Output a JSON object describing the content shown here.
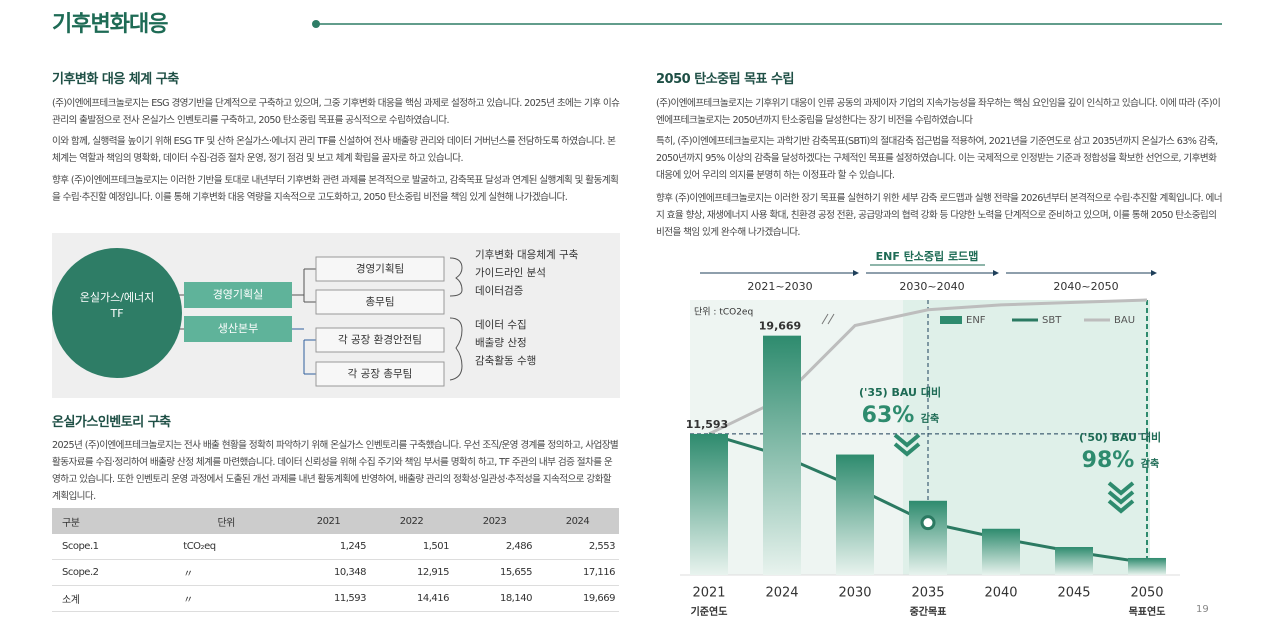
{
  "header": {
    "title": "기후변화대응"
  },
  "sections": [
    {
      "title": "기후변화 대응 체계 구축",
      "paragraphs": [
        "(주)이엔에프테크놀로지는 ESG 경영기반을 단계적으로 구축하고 있으며, 그중 기후변화 대응을 핵심 과제로 설정하고 있습니다. 2025년 초에는 기후 이슈 관리의 출발점으로 전사 온실가스 인벤토리를 구축하고, 2050 탄소중립 목표를 공식적으로 수립하였습니다.",
        "이와 함께, 실행력을 높이기 위해 ESG TF 및 산하 온실가스·에너지 관리 TF를 신설하여 전사 배출량 관리와 데이터 거버넌스를 전담하도록 하였습니다. 본 체계는 역할과 책임의 명확화, 데이터 수집·검증 절차 운영, 정기 점검 및 보고 체계 확립을 골자로 하고 있습니다.",
        "향후 (주)이엔에프테크놀로지는 이러한 기반을 토대로 내년부터 기후변화 관련 과제를 본격적으로 발굴하고, 감축목표 달성과 연계된 실행계획 및 활동계획을 수립·추진할 예정입니다. 이를 통해 기후변화 대응 역량을 지속적으로 고도화하고, 2050 탄소중립 비전을 책임 있게 실현해 나가겠습니다."
      ]
    },
    {
      "title": "온실가스인벤토리 구축",
      "paragraphs": [
        "2025년 (주)이엔에프테크놀로지는 전사 배출 현황을 정확히 파악하기 위해 온실가스 인벤토리를 구축했습니다. 우선 조직/운영 경계를 정의하고, 사업장별 활동자료를 수집·정리하여 배출량 산정 체계를 마련했습니다. 데이터 신뢰성을 위해 수집 주기와 책임 부서를 명확히 하고, TF 주관의 내부 검증 절차를 운영하고 있습니다. 또한 인벤토리 운영 과정에서 도출된 개선 과제를 내년 활동계획에 반영하여, 배출량 관리의 정확성·일관성·추적성을 지속적으로 강화할 계획입니다."
      ]
    },
    {
      "title": "2050 탄소중립 목표 수립",
      "paragraphs": [
        "(주)이엔에프테크놀로지는 기후위기 대응이 인류 공동의 과제이자 기업의 지속가능성을 좌우하는 핵심 요인임을 깊이 인식하고 있습니다. 이에 따라 (주)이엔에프테크놀로지는 2050년까지 탄소중립을 달성한다는 장기 비전을 수립하였습니다",
        "특히, (주)이엔에프테크놀로지는 과학기반 감축목표(SBTi)의 절대감축 접근법을 적용하여, 2021년을 기준연도로 삼고 2035년까지 온실가스 63% 감축, 2050년까지 95% 이상의 감축을 달성하겠다는 구체적인 목표를 설정하였습니다. 이는 국제적으로 인정받는 기준과 정합성을 확보한 선언으로, 기후변화 대응에 있어 우리의 의지를 분명히 하는 이정표라 할 수 있습니다.",
        "향후 (주)이엔에프테크놀로지는 이러한 장기 목표를 실현하기 위한 세부 감축 로드맵과 실행 전략을 2026년부터 본격적으로 수립·추진할 계획입니다. 에너지 효율 향상, 재생에너지 사용 확대, 친환경 공정 전환, 공급망과의 협력 강화 등 다양한 노력을 단계적으로 준비하고 있으며, 이를 통해 2050 탄소중립의 비전을 책임 있게 완수해 나가겠습니다."
      ]
    }
  ],
  "diagram": {
    "root": "온실가스/에너지 TF",
    "departments": [
      "경영기획실",
      "생산본부"
    ],
    "teams": [
      "경영기획팀",
      "총무팀",
      "각 공장 환경안전팀",
      "각 공장 총무팀"
    ],
    "tasks": [
      [
        "기후변화 대응체계 구축",
        "가이드라인 분석",
        "데이터검증"
      ],
      [
        "데이터 수집",
        "배출량 산정",
        "감축활동 수행"
      ]
    ]
  },
  "table": {
    "header": [
      "구분",
      "단위",
      "2021",
      "2022",
      "2023",
      "2024"
    ],
    "rows": [
      [
        "Scope.1",
        "tCO₂eq",
        "1,245",
        "1,501",
        "2,486",
        "2,553"
      ],
      [
        "Scope.2",
        "〃",
        "10,348",
        "12,915",
        "15,655",
        "17,116"
      ],
      [
        "소계",
        "〃",
        "11,593",
        "14,416",
        "18,140",
        "19,669"
      ]
    ]
  },
  "chart_data": {
    "type": "bar",
    "title": "ENF 탄소중립 로드맵",
    "unit": "단위 : tCO2eq",
    "periods": [
      "2021~2030",
      "2030~2040",
      "2040~2050"
    ],
    "categories": [
      "2021",
      "2024",
      "2030",
      "2035",
      "2040",
      "2045",
      "2050"
    ],
    "category_notes": [
      "기준연도",
      null,
      null,
      "중간목표",
      null,
      null,
      "목표연도"
    ],
    "legend": "top-right",
    "series": [
      {
        "name": "ENF",
        "type": "bar",
        "color": "#2e8b6e",
        "values": [
          11593,
          19669,
          9900,
          6100,
          3800,
          2300,
          1400
        ],
        "value_labels": [
          "11,593",
          "19,669",
          null,
          null,
          null,
          null,
          null
        ]
      },
      {
        "name": "SBT",
        "type": "line",
        "color": "#2b7a62",
        "values": [
          11593,
          9800,
          7200,
          4300,
          3000,
          1900,
          1000
        ]
      },
      {
        "name": "BAU",
        "type": "line",
        "color": "#bdbdbd",
        "values": [
          11593,
          14500,
          20500,
          21800,
          22200,
          22400,
          22600
        ]
      }
    ],
    "annotations": [
      {
        "label": "('35) BAU 대비",
        "value": 63,
        "value_label": "63%",
        "suffix": "감축"
      },
      {
        "label": "('50) BAU 대비",
        "value": 98,
        "value_label": "98%",
        "suffix": "감축"
      }
    ]
  },
  "page_number": "19"
}
